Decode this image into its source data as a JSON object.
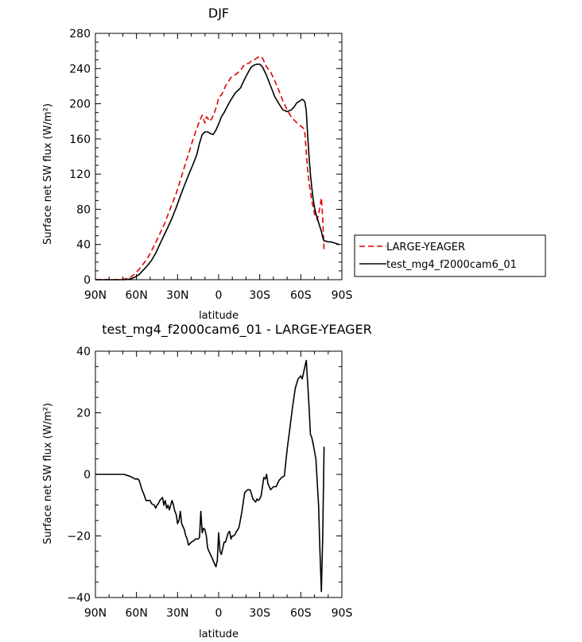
{
  "chart_data": [
    {
      "type": "line",
      "title": "DJF",
      "xlabel": "latitude",
      "ylabel": "Surface net SW flux (W/m²)",
      "xlim": [
        90,
        -90
      ],
      "ylim": [
        0,
        280
      ],
      "x_ticks": [
        90,
        60,
        30,
        0,
        -30,
        -60,
        -90
      ],
      "x_tick_labels": [
        "90N",
        "60N",
        "30N",
        "0",
        "30S",
        "60S",
        "90S"
      ],
      "y_ticks": [
        0,
        40,
        80,
        120,
        160,
        200,
        240,
        280
      ],
      "y_tick_labels": [
        "0",
        "40",
        "80",
        "120",
        "160",
        "200",
        "240",
        "280"
      ],
      "legend_position": "right",
      "series": [
        {
          "name": "LARGE-YEAGER",
          "color": "#e00000",
          "dash": "dashed",
          "x": [
            90,
            80,
            72,
            68,
            64,
            61,
            58,
            55,
            52,
            49,
            46,
            43,
            40,
            37,
            34,
            31,
            28,
            25,
            22,
            19,
            16,
            14,
            12,
            11,
            10,
            9,
            8,
            7,
            5,
            3,
            1,
            0,
            -2,
            -3,
            -5,
            -7,
            -9,
            -11,
            -13,
            -16,
            -19,
            -22,
            -25,
            -26,
            -28,
            -30,
            -32,
            -35,
            -38,
            -41,
            -44,
            -47,
            -50,
            -53,
            -56,
            -59,
            -62,
            -63,
            -64,
            -65,
            -66,
            -67,
            -68,
            -70,
            -72,
            -73,
            -74,
            -75,
            -76,
            -77
          ],
          "y": [
            0,
            0,
            0,
            1,
            3,
            7,
            12,
            18,
            24,
            33,
            42,
            52,
            62,
            74,
            86,
            98,
            113,
            128,
            143,
            158,
            172,
            180,
            187,
            182,
            178,
            185,
            184,
            180,
            183,
            190,
            200,
            207,
            210,
            213,
            220,
            225,
            230,
            232,
            234,
            238,
            245,
            246,
            250,
            250,
            252,
            254,
            252,
            242,
            236,
            226,
            215,
            203,
            193,
            185,
            180,
            176,
            172,
            166,
            145,
            125,
            110,
            100,
            90,
            75,
            68,
            75,
            82,
            93,
            70,
            33
          ]
        },
        {
          "name": "test_mg4_f2000cam6_01",
          "color": "#000000",
          "dash": "solid",
          "x": [
            90,
            80,
            72,
            68,
            64,
            61,
            58,
            55,
            52,
            49,
            46,
            43,
            40,
            37,
            34,
            31,
            28,
            25,
            22,
            19,
            16,
            14,
            12,
            10,
            8,
            6,
            4,
            2,
            0,
            -2,
            -4,
            -6,
            -8,
            -10,
            -12,
            -14,
            -16,
            -18,
            -20,
            -22,
            -24,
            -26,
            -28,
            -30,
            -32,
            -35,
            -38,
            -41,
            -44,
            -47,
            -50,
            -53,
            -55,
            -57,
            -59,
            -61,
            -62,
            -63,
            -64,
            -65,
            -66,
            -67,
            -68,
            -69,
            -70,
            -71,
            -72,
            -73,
            -74,
            -75,
            -76,
            -77,
            -78,
            -80,
            -82,
            -84,
            -86,
            -88
          ],
          "y": [
            0,
            0,
            0,
            0,
            1,
            3,
            6,
            11,
            16,
            22,
            30,
            40,
            50,
            60,
            70,
            82,
            95,
            107,
            119,
            130,
            142,
            155,
            165,
            168,
            168,
            166,
            165,
            170,
            177,
            185,
            190,
            196,
            202,
            207,
            212,
            215,
            218,
            225,
            231,
            237,
            242,
            244,
            245,
            245,
            242,
            232,
            220,
            208,
            200,
            193,
            191,
            193,
            196,
            201,
            203,
            205,
            204,
            202,
            192,
            165,
            140,
            120,
            105,
            92,
            82,
            75,
            70,
            65,
            60,
            55,
            48,
            44,
            44,
            43,
            43,
            42,
            41,
            40
          ]
        }
      ]
    },
    {
      "type": "line",
      "title": "test_mg4_f2000cam6_01 - LARGE-YEAGER",
      "xlabel": "latitude",
      "ylabel": "Surface net SW flux (W/m²)",
      "xlim": [
        90,
        -90
      ],
      "ylim": [
        -40,
        40
      ],
      "x_ticks": [
        90,
        60,
        30,
        0,
        -30,
        -60,
        -90
      ],
      "x_tick_labels": [
        "90N",
        "60N",
        "30N",
        "0",
        "30S",
        "60S",
        "90S"
      ],
      "y_ticks": [
        -40,
        -20,
        0,
        20,
        40
      ],
      "y_tick_labels": [
        "−40",
        "−20",
        "0",
        "20",
        "40"
      ],
      "series": [
        {
          "name": "",
          "color": "#000000",
          "dash": "solid",
          "x": [
            90,
            80,
            75,
            71,
            69,
            67,
            65,
            63,
            61,
            59,
            58,
            56,
            55,
            53,
            52,
            50,
            49,
            47,
            46,
            45,
            44,
            43,
            42,
            41,
            40,
            39,
            38,
            37,
            36,
            34,
            33,
            32,
            31,
            30,
            29,
            28,
            27,
            25,
            24,
            23,
            22,
            20,
            18,
            17,
            16,
            15,
            14,
            13,
            12,
            11,
            10,
            9,
            8,
            7,
            6,
            5,
            4,
            3,
            2,
            1,
            0,
            -1,
            -2,
            -3,
            -4,
            -5,
            -6,
            -7,
            -8,
            -9,
            -10,
            -11,
            -12,
            -13,
            -14,
            -15,
            -17,
            -19,
            -21,
            -23,
            -25,
            -26,
            -27,
            -28,
            -29,
            -30,
            -31,
            -32,
            -33,
            -34,
            -35,
            -36,
            -38,
            -40,
            -42,
            -44,
            -46,
            -48,
            -50,
            -52,
            -54,
            -56,
            -58,
            -60,
            -61,
            -62,
            -63,
            -64,
            -65,
            -66,
            -67,
            -68,
            -69,
            -71,
            -73,
            -74,
            -75,
            -76,
            -77
          ],
          "y": [
            0,
            0,
            0,
            0,
            0,
            -0.3,
            -0.6,
            -1,
            -1.5,
            -1.5,
            -2,
            -5,
            -6,
            -8.5,
            -8.5,
            -8.5,
            -9.5,
            -10,
            -11,
            -10,
            -9.5,
            -8.5,
            -8,
            -7.5,
            -10,
            -8.5,
            -11,
            -10,
            -11.5,
            -8.5,
            -10,
            -12,
            -13,
            -16,
            -15,
            -12,
            -16,
            -18,
            -20,
            -21,
            -23,
            -22,
            -21.5,
            -21,
            -21,
            -21,
            -20.5,
            -12,
            -19,
            -17.5,
            -18,
            -20,
            -24,
            -25,
            -26,
            -27,
            -28,
            -29,
            -30,
            -28,
            -19,
            -25,
            -26,
            -24,
            -22,
            -22,
            -20.5,
            -19,
            -18.5,
            -21,
            -20,
            -20,
            -19.5,
            -18.5,
            -18,
            -17,
            -12,
            -6,
            -5,
            -5,
            -8,
            -8.5,
            -9,
            -8,
            -8.5,
            -8,
            -7,
            -4,
            -1,
            -1.5,
            0,
            -3,
            -5,
            -4,
            -4,
            -2,
            -1,
            -0.5,
            8,
            15,
            22,
            28,
            31,
            32,
            31,
            33,
            35,
            37,
            30,
            22,
            13,
            12,
            10,
            5,
            -10,
            -25,
            -38,
            -20,
            9
          ]
        }
      ]
    }
  ]
}
